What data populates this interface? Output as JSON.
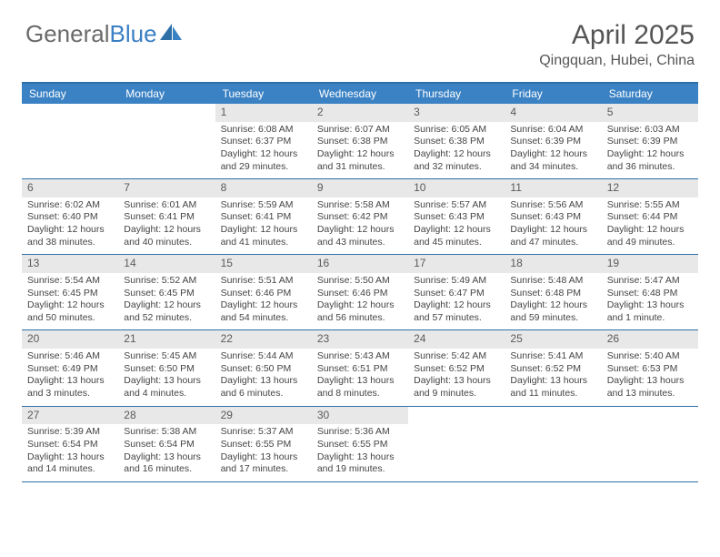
{
  "logo": {
    "part1": "General",
    "part2": "Blue"
  },
  "title": "April 2025",
  "location": "Qingquan, Hubei, China",
  "colors": {
    "header_bg": "#3b82c4",
    "border": "#2f6fa8",
    "daynum_bg": "#e8e8e8",
    "text": "#444444"
  },
  "day_names": [
    "Sunday",
    "Monday",
    "Tuesday",
    "Wednesday",
    "Thursday",
    "Friday",
    "Saturday"
  ],
  "weeks": [
    [
      null,
      null,
      {
        "n": "1",
        "sr": "Sunrise: 6:08 AM",
        "ss": "Sunset: 6:37 PM",
        "d1": "Daylight: 12 hours",
        "d2": "and 29 minutes."
      },
      {
        "n": "2",
        "sr": "Sunrise: 6:07 AM",
        "ss": "Sunset: 6:38 PM",
        "d1": "Daylight: 12 hours",
        "d2": "and 31 minutes."
      },
      {
        "n": "3",
        "sr": "Sunrise: 6:05 AM",
        "ss": "Sunset: 6:38 PM",
        "d1": "Daylight: 12 hours",
        "d2": "and 32 minutes."
      },
      {
        "n": "4",
        "sr": "Sunrise: 6:04 AM",
        "ss": "Sunset: 6:39 PM",
        "d1": "Daylight: 12 hours",
        "d2": "and 34 minutes."
      },
      {
        "n": "5",
        "sr": "Sunrise: 6:03 AM",
        "ss": "Sunset: 6:39 PM",
        "d1": "Daylight: 12 hours",
        "d2": "and 36 minutes."
      }
    ],
    [
      {
        "n": "6",
        "sr": "Sunrise: 6:02 AM",
        "ss": "Sunset: 6:40 PM",
        "d1": "Daylight: 12 hours",
        "d2": "and 38 minutes."
      },
      {
        "n": "7",
        "sr": "Sunrise: 6:01 AM",
        "ss": "Sunset: 6:41 PM",
        "d1": "Daylight: 12 hours",
        "d2": "and 40 minutes."
      },
      {
        "n": "8",
        "sr": "Sunrise: 5:59 AM",
        "ss": "Sunset: 6:41 PM",
        "d1": "Daylight: 12 hours",
        "d2": "and 41 minutes."
      },
      {
        "n": "9",
        "sr": "Sunrise: 5:58 AM",
        "ss": "Sunset: 6:42 PM",
        "d1": "Daylight: 12 hours",
        "d2": "and 43 minutes."
      },
      {
        "n": "10",
        "sr": "Sunrise: 5:57 AM",
        "ss": "Sunset: 6:43 PM",
        "d1": "Daylight: 12 hours",
        "d2": "and 45 minutes."
      },
      {
        "n": "11",
        "sr": "Sunrise: 5:56 AM",
        "ss": "Sunset: 6:43 PM",
        "d1": "Daylight: 12 hours",
        "d2": "and 47 minutes."
      },
      {
        "n": "12",
        "sr": "Sunrise: 5:55 AM",
        "ss": "Sunset: 6:44 PM",
        "d1": "Daylight: 12 hours",
        "d2": "and 49 minutes."
      }
    ],
    [
      {
        "n": "13",
        "sr": "Sunrise: 5:54 AM",
        "ss": "Sunset: 6:45 PM",
        "d1": "Daylight: 12 hours",
        "d2": "and 50 minutes."
      },
      {
        "n": "14",
        "sr": "Sunrise: 5:52 AM",
        "ss": "Sunset: 6:45 PM",
        "d1": "Daylight: 12 hours",
        "d2": "and 52 minutes."
      },
      {
        "n": "15",
        "sr": "Sunrise: 5:51 AM",
        "ss": "Sunset: 6:46 PM",
        "d1": "Daylight: 12 hours",
        "d2": "and 54 minutes."
      },
      {
        "n": "16",
        "sr": "Sunrise: 5:50 AM",
        "ss": "Sunset: 6:46 PM",
        "d1": "Daylight: 12 hours",
        "d2": "and 56 minutes."
      },
      {
        "n": "17",
        "sr": "Sunrise: 5:49 AM",
        "ss": "Sunset: 6:47 PM",
        "d1": "Daylight: 12 hours",
        "d2": "and 57 minutes."
      },
      {
        "n": "18",
        "sr": "Sunrise: 5:48 AM",
        "ss": "Sunset: 6:48 PM",
        "d1": "Daylight: 12 hours",
        "d2": "and 59 minutes."
      },
      {
        "n": "19",
        "sr": "Sunrise: 5:47 AM",
        "ss": "Sunset: 6:48 PM",
        "d1": "Daylight: 13 hours",
        "d2": "and 1 minute."
      }
    ],
    [
      {
        "n": "20",
        "sr": "Sunrise: 5:46 AM",
        "ss": "Sunset: 6:49 PM",
        "d1": "Daylight: 13 hours",
        "d2": "and 3 minutes."
      },
      {
        "n": "21",
        "sr": "Sunrise: 5:45 AM",
        "ss": "Sunset: 6:50 PM",
        "d1": "Daylight: 13 hours",
        "d2": "and 4 minutes."
      },
      {
        "n": "22",
        "sr": "Sunrise: 5:44 AM",
        "ss": "Sunset: 6:50 PM",
        "d1": "Daylight: 13 hours",
        "d2": "and 6 minutes."
      },
      {
        "n": "23",
        "sr": "Sunrise: 5:43 AM",
        "ss": "Sunset: 6:51 PM",
        "d1": "Daylight: 13 hours",
        "d2": "and 8 minutes."
      },
      {
        "n": "24",
        "sr": "Sunrise: 5:42 AM",
        "ss": "Sunset: 6:52 PM",
        "d1": "Daylight: 13 hours",
        "d2": "and 9 minutes."
      },
      {
        "n": "25",
        "sr": "Sunrise: 5:41 AM",
        "ss": "Sunset: 6:52 PM",
        "d1": "Daylight: 13 hours",
        "d2": "and 11 minutes."
      },
      {
        "n": "26",
        "sr": "Sunrise: 5:40 AM",
        "ss": "Sunset: 6:53 PM",
        "d1": "Daylight: 13 hours",
        "d2": "and 13 minutes."
      }
    ],
    [
      {
        "n": "27",
        "sr": "Sunrise: 5:39 AM",
        "ss": "Sunset: 6:54 PM",
        "d1": "Daylight: 13 hours",
        "d2": "and 14 minutes."
      },
      {
        "n": "28",
        "sr": "Sunrise: 5:38 AM",
        "ss": "Sunset: 6:54 PM",
        "d1": "Daylight: 13 hours",
        "d2": "and 16 minutes."
      },
      {
        "n": "29",
        "sr": "Sunrise: 5:37 AM",
        "ss": "Sunset: 6:55 PM",
        "d1": "Daylight: 13 hours",
        "d2": "and 17 minutes."
      },
      {
        "n": "30",
        "sr": "Sunrise: 5:36 AM",
        "ss": "Sunset: 6:55 PM",
        "d1": "Daylight: 13 hours",
        "d2": "and 19 minutes."
      },
      null,
      null,
      null
    ]
  ]
}
